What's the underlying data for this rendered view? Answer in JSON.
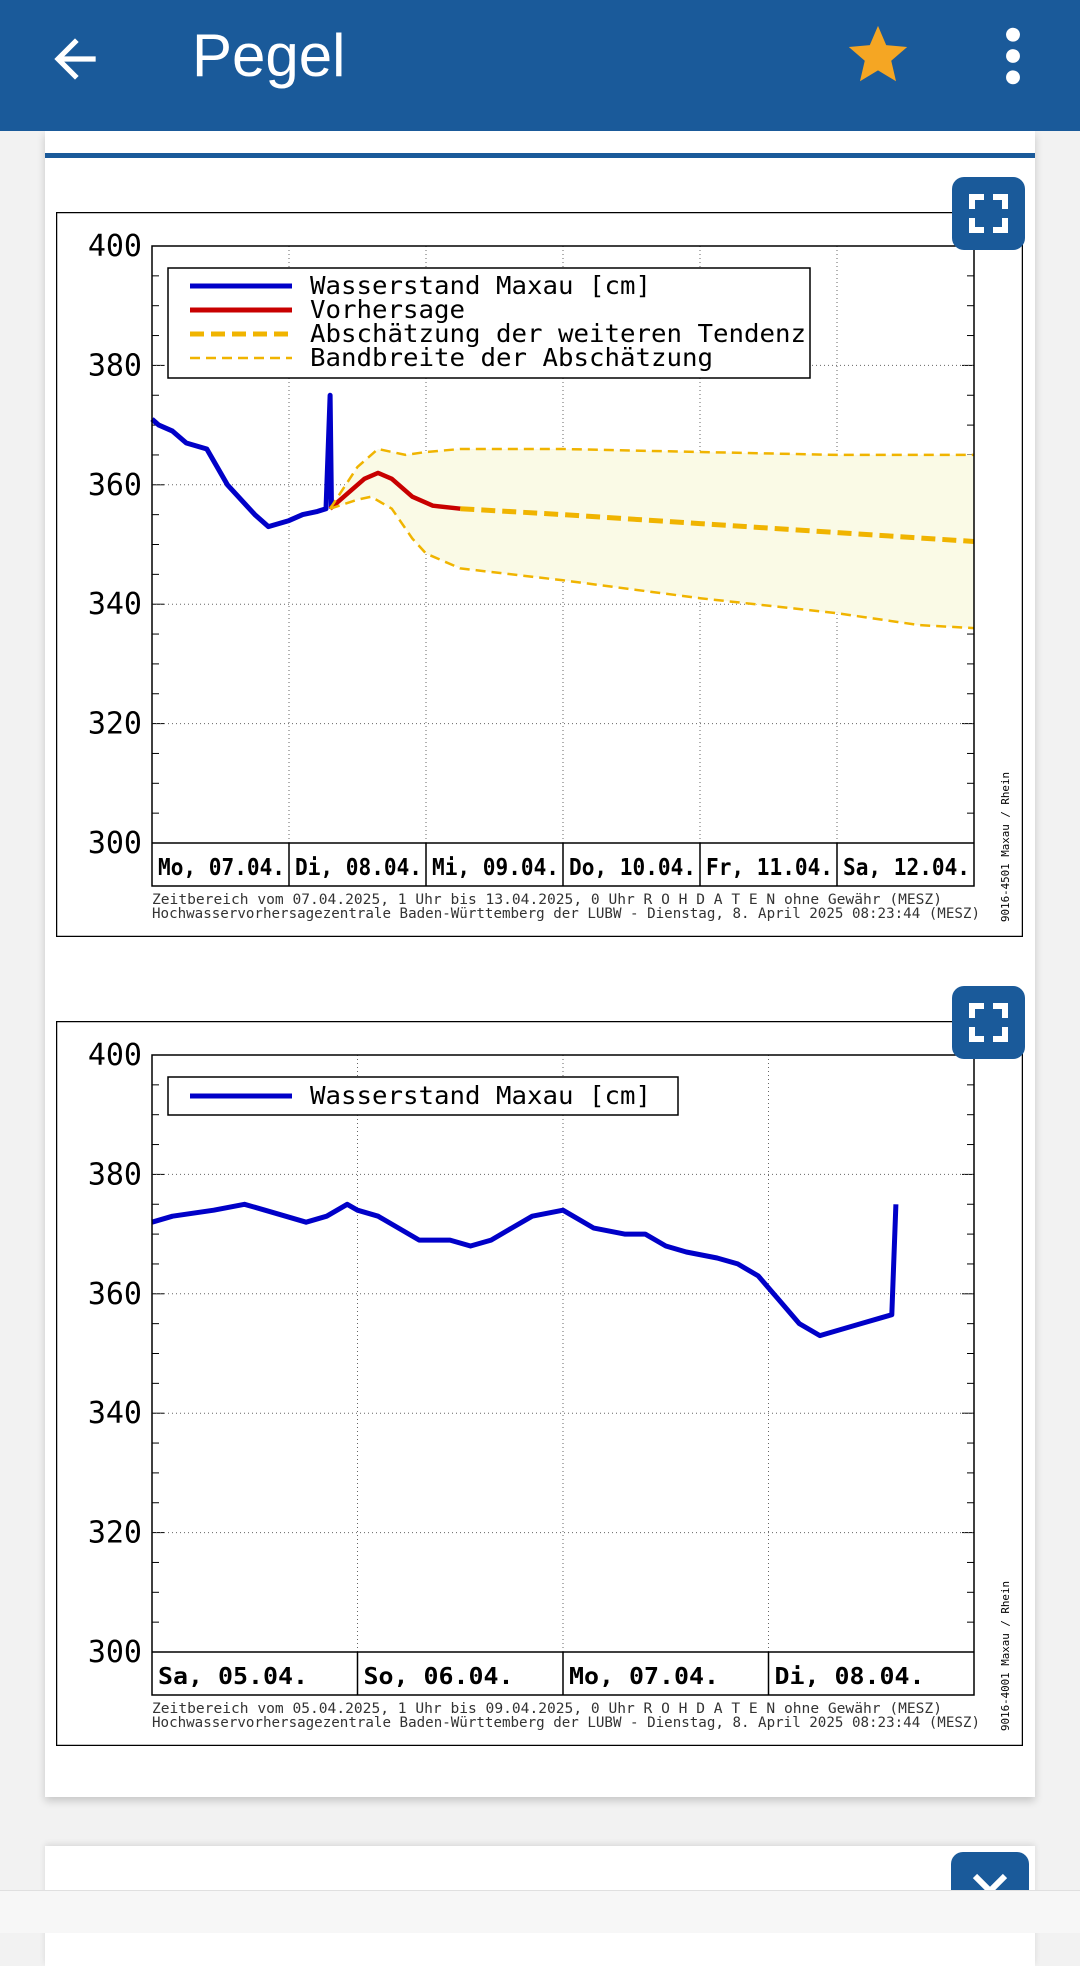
{
  "app_bar": {
    "title": "Pegel"
  },
  "icons": {
    "back": "arrow-back-icon",
    "star": "star-icon",
    "more": "more-vert-icon",
    "fullscreen": "fullscreen-icon",
    "close": "close-icon"
  },
  "colors": {
    "primary": "#1a5a9a",
    "star": "#f5a623",
    "measured": "#0000c8",
    "forecast": "#c80000",
    "trend": "#f0b400",
    "band_fill": "#fafae6"
  },
  "card2": {
    "heading": ""
  },
  "chart_data": [
    {
      "type": "line",
      "title": "",
      "ylim": [
        300,
        400
      ],
      "yticks": [
        "300",
        "320",
        "340",
        "360",
        "380",
        "400"
      ],
      "x_categories": [
        "Mo, 07.04.",
        "Di, 08.04.",
        "Mi, 09.04.",
        "Do, 10.04.",
        "Fr, 11.04.",
        "Sa, 12.04."
      ],
      "grid": true,
      "legend_position": "top-left",
      "legend": [
        {
          "label": "Wasserstand Maxau [cm]",
          "style": "solid",
          "color": "#0000c8"
        },
        {
          "label": "Vorhersage",
          "style": "solid",
          "color": "#c80000"
        },
        {
          "label": "Abschätzung der weiteren Tendenz",
          "style": "dashed-thick",
          "color": "#f0b400"
        },
        {
          "label": "Bandbreite der Abschätzung",
          "style": "dashed-thin",
          "color": "#f0b400"
        }
      ],
      "series": [
        {
          "name": "Wasserstand Maxau [cm]",
          "points": [
            [
              0,
              371
            ],
            [
              0.05,
              370
            ],
            [
              0.15,
              369
            ],
            [
              0.25,
              367
            ],
            [
              0.4,
              366
            ],
            [
              0.55,
              360
            ],
            [
              0.75,
              355
            ],
            [
              0.85,
              353
            ],
            [
              1.0,
              354
            ],
            [
              1.1,
              355
            ],
            [
              1.2,
              355.5
            ],
            [
              1.27,
              356
            ],
            [
              1.3,
              375
            ],
            [
              1.31,
              356
            ]
          ]
        },
        {
          "name": "Vorhersage",
          "points": [
            [
              1.3,
              356
            ],
            [
              1.45,
              359
            ],
            [
              1.55,
              361
            ],
            [
              1.65,
              362
            ],
            [
              1.75,
              361
            ],
            [
              1.9,
              358
            ],
            [
              2.05,
              356.5
            ],
            [
              2.25,
              356
            ]
          ]
        },
        {
          "name": "Abschätzung der weiteren Tendenz",
          "points": [
            [
              2.25,
              356
            ],
            [
              3,
              355
            ],
            [
              4,
              353.5
            ],
            [
              5,
              352
            ],
            [
              6,
              350.5
            ]
          ]
        },
        {
          "name": "Bandbreite der Abschätzung (oben)",
          "points": [
            [
              1.3,
              356
            ],
            [
              1.5,
              363
            ],
            [
              1.65,
              366
            ],
            [
              1.85,
              365
            ],
            [
              2.0,
              365.5
            ],
            [
              2.25,
              366
            ],
            [
              3,
              366
            ],
            [
              4,
              365.5
            ],
            [
              5,
              365
            ],
            [
              6,
              365
            ]
          ]
        },
        {
          "name": "Bandbreite der Abschätzung (unten)",
          "points": [
            [
              1.3,
              356
            ],
            [
              1.5,
              357.5
            ],
            [
              1.6,
              358
            ],
            [
              1.75,
              356
            ],
            [
              1.9,
              351
            ],
            [
              2.0,
              348.5
            ],
            [
              2.25,
              346
            ],
            [
              3,
              344
            ],
            [
              4,
              341
            ],
            [
              5,
              338.5
            ],
            [
              5.6,
              336.5
            ],
            [
              6,
              336
            ]
          ]
        }
      ],
      "footer_line1": "Zeitbereich vom 07.04.2025, 1 Uhr bis 13.04.2025, 0 Uhr    R O H D A T E N ohne Gewähr (MESZ)",
      "footer_line2": "Hochwasservorhersagezentrale Baden-Württemberg der LUBW - Dienstag, 8. April 2025 08:23:44 (MESZ)",
      "side_label": "9016-4501 Maxau / Rhein"
    },
    {
      "type": "line",
      "title": "",
      "ylim": [
        300,
        400
      ],
      "yticks": [
        "300",
        "320",
        "340",
        "360",
        "380",
        "400"
      ],
      "x_categories": [
        "Sa, 05.04.",
        "So, 06.04.",
        "Mo, 07.04.",
        "Di, 08.04."
      ],
      "grid": true,
      "legend_position": "top-left",
      "legend": [
        {
          "label": "Wasserstand Maxau [cm]",
          "style": "solid",
          "color": "#0000c8"
        }
      ],
      "series": [
        {
          "name": "Wasserstand Maxau [cm]",
          "points": [
            [
              0,
              372
            ],
            [
              0.1,
              373
            ],
            [
              0.3,
              374
            ],
            [
              0.45,
              375
            ],
            [
              0.55,
              374
            ],
            [
              0.65,
              373
            ],
            [
              0.75,
              372
            ],
            [
              0.85,
              373
            ],
            [
              0.95,
              375
            ],
            [
              1.0,
              374
            ],
            [
              1.1,
              373
            ],
            [
              1.2,
              371
            ],
            [
              1.3,
              369
            ],
            [
              1.45,
              369
            ],
            [
              1.55,
              368
            ],
            [
              1.65,
              369
            ],
            [
              1.75,
              371
            ],
            [
              1.85,
              373
            ],
            [
              2.0,
              374
            ],
            [
              2.05,
              373
            ],
            [
              2.15,
              371
            ],
            [
              2.3,
              370
            ],
            [
              2.4,
              370
            ],
            [
              2.5,
              368
            ],
            [
              2.6,
              367
            ],
            [
              2.75,
              366
            ],
            [
              2.85,
              365
            ],
            [
              2.95,
              363
            ],
            [
              3.05,
              359
            ],
            [
              3.15,
              355
            ],
            [
              3.25,
              353
            ],
            [
              3.35,
              354
            ],
            [
              3.45,
              355
            ],
            [
              3.55,
              356
            ],
            [
              3.6,
              356.5
            ],
            [
              3.62,
              375
            ]
          ]
        }
      ],
      "footer_line1": "Zeitbereich vom 05.04.2025, 1 Uhr bis 09.04.2025, 0 Uhr    R O H D A T E N ohne Gewähr (MESZ)",
      "footer_line2": "Hochwasservorhersagezentrale Baden-Württemberg der LUBW - Dienstag, 8. April 2025 08:23:44 (MESZ)",
      "side_label": "9016-4001 Maxau / Rhein"
    }
  ]
}
